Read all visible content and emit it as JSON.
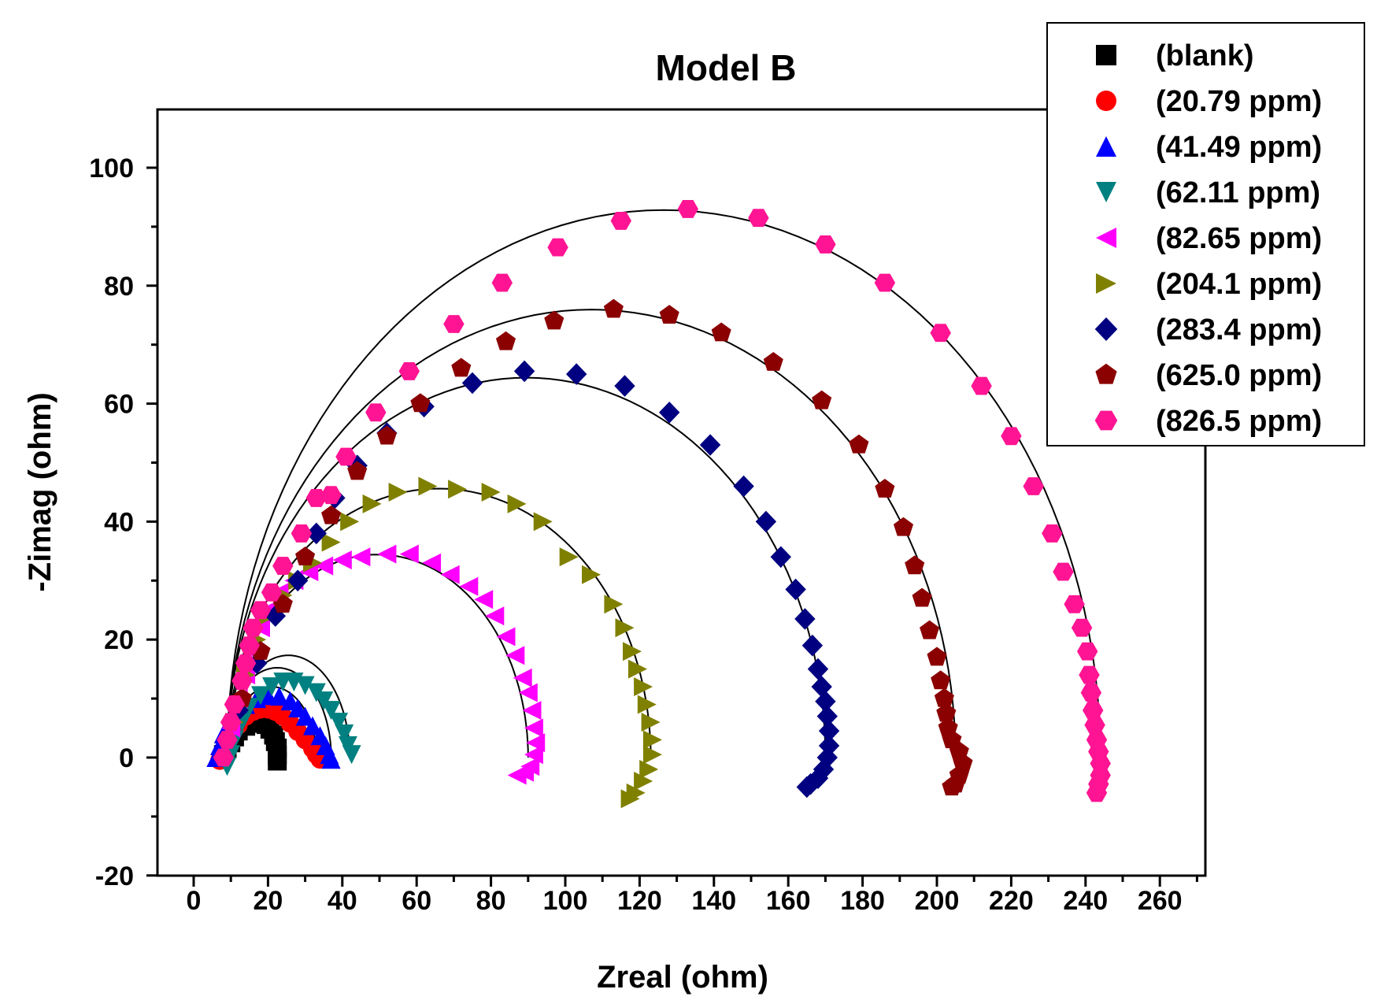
{
  "chart_data": {
    "type": "scatter",
    "title": "Model B",
    "xlabel": "Zreal (ohm)",
    "ylabel": "-Zimag (ohm)",
    "xlim": [
      -20,
      270
    ],
    "ylim": [
      -20,
      110
    ],
    "xticks": [
      0,
      20,
      40,
      60,
      80,
      100,
      120,
      140,
      160,
      180,
      200,
      220,
      240,
      260
    ],
    "yticks": [
      -20,
      0,
      20,
      40,
      60,
      80,
      100
    ],
    "grid": false,
    "legend_position": "top-right",
    "fit_line_color": "#000000",
    "series": [
      {
        "name": "(blank)",
        "marker": "square",
        "color": "#000000",
        "fit": {
          "x0": 9,
          "x1": 22,
          "bulge": 1.0,
          "closing": 0.6
        },
        "points": [
          [
            8,
            0.5
          ],
          [
            9,
            1.5
          ],
          [
            10,
            2.5
          ],
          [
            11,
            3.5
          ],
          [
            12,
            4.5
          ],
          [
            14,
            5.3
          ],
          [
            16,
            5.8
          ],
          [
            18,
            6
          ],
          [
            19.5,
            5.6
          ],
          [
            20.5,
            4.8
          ],
          [
            21.5,
            3.8
          ],
          [
            22,
            2.7
          ],
          [
            22.5,
            1.6
          ],
          [
            22.5,
            0.4
          ],
          [
            22.5,
            -0.6
          ]
        ]
      },
      {
        "name": "(20.79 ppm)",
        "marker": "circle",
        "color": "#ff0000",
        "fit": {
          "x0": 9,
          "x1": 33,
          "bulge": 1.0,
          "closing": 0.55
        },
        "points": [
          [
            7,
            -0.5
          ],
          [
            8,
            1
          ],
          [
            9,
            2.5
          ],
          [
            10,
            4
          ],
          [
            12,
            5.5
          ],
          [
            14,
            7
          ],
          [
            16,
            7.8
          ],
          [
            18,
            8.2
          ],
          [
            20,
            8.2
          ],
          [
            22,
            7.8
          ],
          [
            24,
            7
          ],
          [
            26,
            5.8
          ],
          [
            28,
            4.4
          ],
          [
            30,
            3
          ],
          [
            32,
            1.5
          ],
          [
            33,
            0.5
          ],
          [
            34,
            -0.3
          ]
        ]
      },
      {
        "name": "(41.49 ppm)",
        "marker": "triangle-up",
        "color": "#0000ff",
        "fit": {
          "x0": 8,
          "x1": 37,
          "bulge": 1.05,
          "closing": 0.55
        },
        "points": [
          [
            6,
            0
          ],
          [
            7,
            2
          ],
          [
            8,
            4
          ],
          [
            10,
            6
          ],
          [
            12,
            7.8
          ],
          [
            14,
            9
          ],
          [
            17,
            10
          ],
          [
            20,
            10.5
          ],
          [
            23,
            10.4
          ],
          [
            26,
            9.6
          ],
          [
            28,
            8.4
          ],
          [
            30,
            7
          ],
          [
            32,
            5.4
          ],
          [
            34,
            3.7
          ],
          [
            35.5,
            2
          ],
          [
            36.5,
            0.5
          ],
          [
            37,
            -0.3
          ]
        ]
      },
      {
        "name": "(62.11 ppm)",
        "marker": "triangle-down",
        "color": "#008080",
        "fit": {
          "x0": 9,
          "x1": 42,
          "bulge": 1.05,
          "closing": 0.55
        },
        "points": [
          [
            9,
            -1.5
          ],
          [
            10,
            0.5
          ],
          [
            11,
            3
          ],
          [
            13,
            6
          ],
          [
            15,
            8.5
          ],
          [
            18,
            10.5
          ],
          [
            21,
            12
          ],
          [
            24,
            12.8
          ],
          [
            27,
            12.8
          ],
          [
            30,
            12.2
          ],
          [
            33,
            11
          ],
          [
            35,
            9.6
          ],
          [
            37,
            8
          ],
          [
            39,
            6
          ],
          [
            40.5,
            4
          ],
          [
            41.5,
            2
          ],
          [
            42.5,
            0.5
          ]
        ]
      },
      {
        "name": "(82.65 ppm)",
        "marker": "triangle-left",
        "color": "#ff00ff",
        "fit": {
          "x0": 9,
          "x1": 90,
          "bulge": 0.85,
          "closing": 0.55
        },
        "points": [
          [
            10,
            5
          ],
          [
            12,
            10
          ],
          [
            14,
            14
          ],
          [
            16,
            18
          ],
          [
            18,
            22
          ],
          [
            20,
            25
          ],
          [
            23,
            28
          ],
          [
            27,
            30
          ],
          [
            31,
            31.5
          ],
          [
            35,
            32.5
          ],
          [
            40,
            33.5
          ],
          [
            45,
            34
          ],
          [
            52,
            34.5
          ],
          [
            58,
            34.5
          ],
          [
            64,
            33
          ],
          [
            69,
            31
          ],
          [
            74,
            29
          ],
          [
            78,
            26.8
          ],
          [
            81,
            24
          ],
          [
            84,
            20.5
          ],
          [
            86.5,
            17.3
          ],
          [
            88.5,
            13.5
          ],
          [
            90,
            11
          ],
          [
            91,
            8
          ],
          [
            91.5,
            5
          ],
          [
            92,
            2.5
          ],
          [
            91.5,
            0.5
          ],
          [
            90.5,
            -1.5
          ],
          [
            89,
            -2.5
          ],
          [
            87,
            -3
          ]
        ]
      },
      {
        "name": "(204.1 ppm)",
        "marker": "triangle-right",
        "color": "#808000",
        "fit": {
          "x0": 9,
          "x1": 123,
          "bulge": 0.8,
          "closing": 0.5
        },
        "points": [
          [
            11,
            6
          ],
          [
            14,
            14
          ],
          [
            17,
            20
          ],
          [
            20,
            24
          ],
          [
            24,
            27.5
          ],
          [
            28,
            30
          ],
          [
            32,
            33
          ],
          [
            37,
            36.5
          ],
          [
            42,
            40
          ],
          [
            48,
            43
          ],
          [
            55,
            45
          ],
          [
            63,
            46
          ],
          [
            71,
            45.5
          ],
          [
            80,
            45
          ],
          [
            87,
            43
          ],
          [
            94,
            40
          ],
          [
            101,
            34
          ],
          [
            107,
            31
          ],
          [
            113,
            26
          ],
          [
            116,
            22
          ],
          [
            118,
            18
          ],
          [
            119.5,
            15
          ],
          [
            121,
            12
          ],
          [
            122,
            9
          ],
          [
            123,
            6
          ],
          [
            123.5,
            3
          ],
          [
            123.5,
            0.5
          ],
          [
            122.5,
            -2
          ],
          [
            121,
            -4
          ],
          [
            119,
            -6
          ],
          [
            117.5,
            -7
          ]
        ]
      },
      {
        "name": "(283.4 ppm)",
        "marker": "diamond",
        "color": "#000080",
        "fit": {
          "x0": 9,
          "x1": 170,
          "bulge": 0.8,
          "closing": 0.5
        },
        "points": [
          [
            12,
            8
          ],
          [
            17,
            16
          ],
          [
            22,
            24
          ],
          [
            28,
            30
          ],
          [
            33,
            38
          ],
          [
            38,
            44
          ],
          [
            44,
            49.5
          ],
          [
            52,
            55
          ],
          [
            62,
            59.5
          ],
          [
            75,
            63.5
          ],
          [
            89,
            65.5
          ],
          [
            103,
            65
          ],
          [
            116,
            63
          ],
          [
            128,
            58.5
          ],
          [
            139,
            53
          ],
          [
            148,
            46
          ],
          [
            154,
            40
          ],
          [
            158,
            34
          ],
          [
            162,
            28.5
          ],
          [
            164.5,
            23.5
          ],
          [
            166.5,
            19
          ],
          [
            168,
            15
          ],
          [
            169,
            12
          ],
          [
            170,
            9.5
          ],
          [
            170.5,
            7
          ],
          [
            171,
            4.5
          ],
          [
            171,
            2
          ],
          [
            170.5,
            0
          ],
          [
            169.5,
            -2
          ],
          [
            168,
            -3.5
          ],
          [
            166,
            -4.5
          ],
          [
            165,
            -5
          ]
        ]
      },
      {
        "name": "(625.0 ppm)",
        "marker": "pentagon",
        "color": "#8b0000",
        "fit": {
          "x0": 9,
          "x1": 205,
          "bulge": 0.775,
          "closing": 0.5
        },
        "points": [
          [
            13,
            10
          ],
          [
            18,
            18
          ],
          [
            24,
            26
          ],
          [
            30,
            34
          ],
          [
            37,
            41
          ],
          [
            44,
            48.5
          ],
          [
            52,
            54.5
          ],
          [
            61,
            60
          ],
          [
            72,
            66
          ],
          [
            84,
            70.5
          ],
          [
            97,
            74
          ],
          [
            113,
            76
          ],
          [
            128,
            75
          ],
          [
            142,
            72
          ],
          [
            156,
            67
          ],
          [
            169,
            60.5
          ],
          [
            179,
            53
          ],
          [
            186,
            45.5
          ],
          [
            191,
            39
          ],
          [
            194,
            32.5
          ],
          [
            196,
            27
          ],
          [
            198,
            21.5
          ],
          [
            200,
            17
          ],
          [
            201,
            13
          ],
          [
            202,
            10
          ],
          [
            202.5,
            7.5
          ],
          [
            203,
            5
          ],
          [
            204,
            3
          ],
          [
            206,
            1
          ],
          [
            207,
            -1
          ],
          [
            206,
            -3
          ],
          [
            205,
            -4.5
          ],
          [
            204,
            -5
          ]
        ]
      },
      {
        "name": "(826.5 ppm)",
        "marker": "hexagon",
        "color": "#ff1493",
        "fit": {
          "x0": 9,
          "x1": 244,
          "bulge": 0.79,
          "closing": 0.5
        },
        "points": [
          [
            8,
            0
          ],
          [
            9,
            3
          ],
          [
            10,
            6
          ],
          [
            11,
            9
          ],
          [
            13,
            13
          ],
          [
            14,
            16
          ],
          [
            15,
            19
          ],
          [
            16,
            22
          ],
          [
            18,
            25
          ],
          [
            21,
            28
          ],
          [
            24,
            32.5
          ],
          [
            29,
            38
          ],
          [
            33,
            44
          ],
          [
            37,
            44.5
          ],
          [
            41,
            51
          ],
          [
            49,
            58.5
          ],
          [
            58,
            65.5
          ],
          [
            70,
            73.5
          ],
          [
            83,
            80.5
          ],
          [
            98,
            86.5
          ],
          [
            115,
            91
          ],
          [
            133,
            93
          ],
          [
            152,
            91.5
          ],
          [
            170,
            87
          ],
          [
            186,
            80.5
          ],
          [
            201,
            72
          ],
          [
            212,
            63
          ],
          [
            220,
            54.5
          ],
          [
            226,
            46
          ],
          [
            231,
            38
          ],
          [
            234,
            31.5
          ],
          [
            237,
            26
          ],
          [
            239,
            22
          ],
          [
            240.5,
            18
          ],
          [
            241,
            14
          ],
          [
            241.5,
            11
          ],
          [
            242,
            8
          ],
          [
            242.5,
            5.5
          ],
          [
            243,
            3
          ],
          [
            243.5,
            1
          ],
          [
            244,
            -1
          ],
          [
            244,
            -3
          ],
          [
            243.5,
            -4.5
          ],
          [
            243,
            -6
          ]
        ]
      }
    ]
  }
}
